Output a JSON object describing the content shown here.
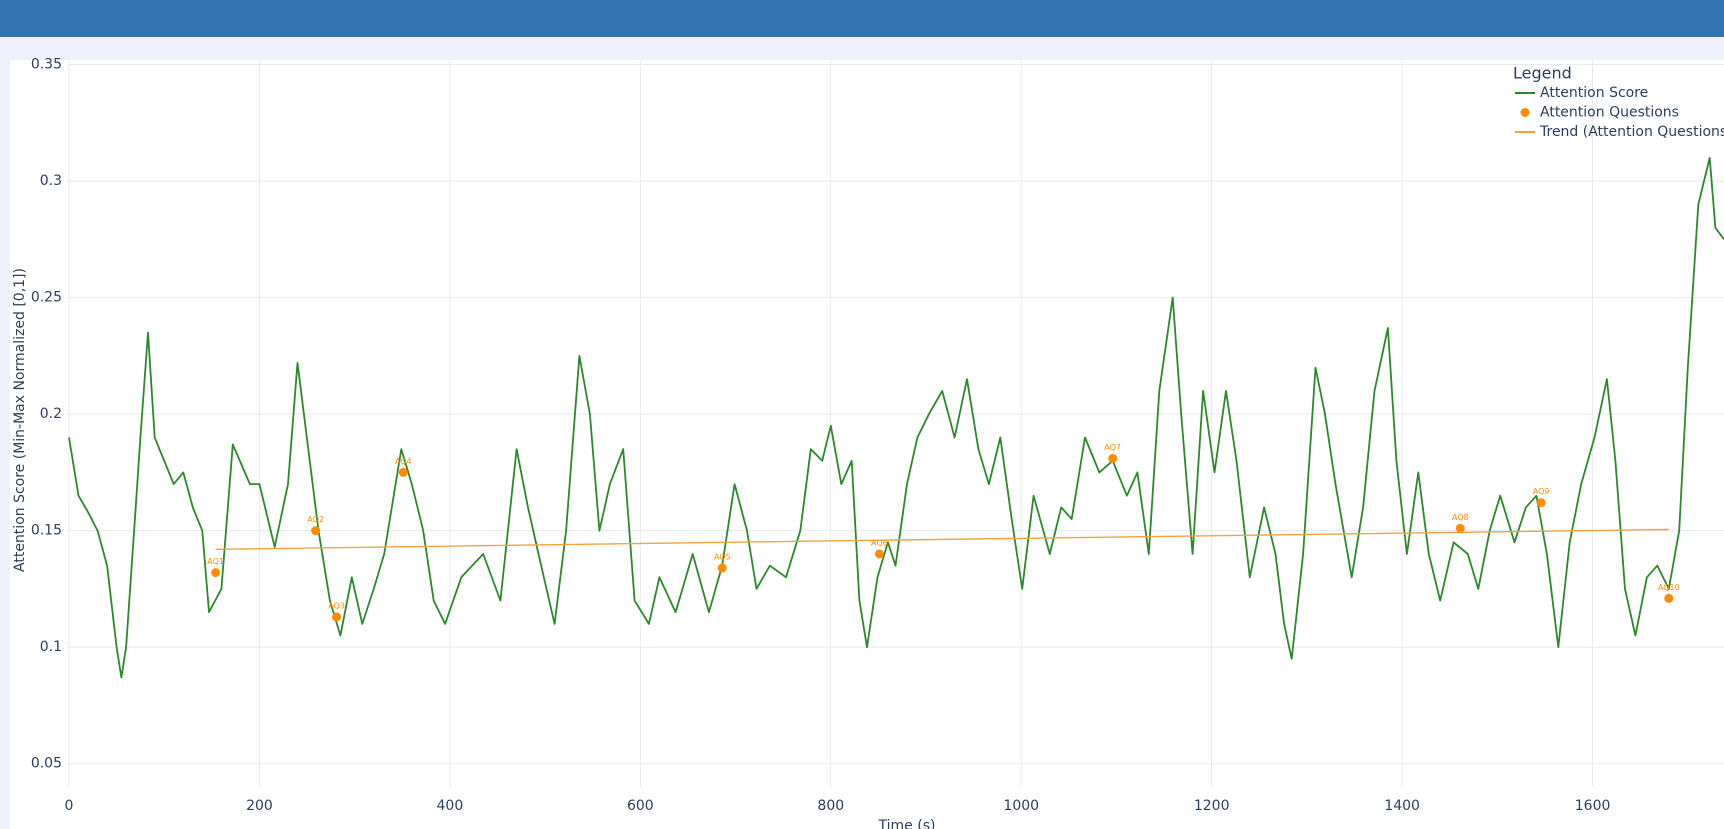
{
  "chart_data": {
    "type": "line",
    "xlabel": "Time (s)",
    "ylabel": "Attention Score (Min-Max Normalized [0,1])",
    "legend_title": "Legend",
    "legend": "top-right",
    "grid": true,
    "xlim": [
      0,
      1738
    ],
    "ylim": [
      0.04,
      0.352
    ],
    "xticks": [
      0,
      200,
      400,
      600,
      800,
      1000,
      1200,
      1400,
      1600
    ],
    "yticks": [
      0.05,
      0.1,
      0.15,
      0.2,
      0.25,
      0.3,
      0.35
    ],
    "series": [
      {
        "name": "Attention Score",
        "mode": "lines",
        "color": "#2a8a2a",
        "x": [
          0,
          10,
          20,
          30,
          40,
          50,
          55,
          60,
          70,
          75,
          83,
          90,
          100,
          110,
          120,
          130,
          140,
          147,
          160,
          172,
          190,
          200,
          216,
          230,
          240,
          262,
          274,
          285,
          297,
          308,
          320,
          331,
          349,
          360,
          372,
          383,
          395,
          412,
          435,
          453,
          470,
          482,
          493,
          510,
          522,
          536,
          547,
          557,
          568,
          582,
          594,
          609,
          620,
          637,
          655,
          672,
          686,
          699,
          712,
          722,
          736,
          753,
          768,
          779,
          791,
          800,
          811,
          822,
          830,
          838,
          849,
          860,
          868,
          880,
          891,
          903,
          917,
          930,
          943,
          955,
          966,
          978,
          990,
          1001,
          1013,
          1030,
          1042,
          1053,
          1067,
          1082,
          1096,
          1111,
          1122,
          1134,
          1145,
          1159,
          1168,
          1180,
          1191,
          1203,
          1215,
          1226,
          1240,
          1255,
          1267,
          1276,
          1284,
          1296,
          1309,
          1319,
          1330,
          1347,
          1359,
          1371,
          1385,
          1394,
          1405,
          1417,
          1428,
          1440,
          1454,
          1469,
          1480,
          1492,
          1503,
          1518,
          1530,
          1541,
          1552,
          1564,
          1576,
          1588,
          1602,
          1615,
          1624,
          1634,
          1645,
          1657,
          1668,
          1680,
          1691,
          1700,
          1711,
          1723,
          1729,
          1738
        ],
        "values": [
          0.19,
          0.165,
          0.158,
          0.15,
          0.135,
          0.1,
          0.087,
          0.1,
          0.16,
          0.19,
          0.235,
          0.19,
          0.18,
          0.17,
          0.175,
          0.16,
          0.15,
          0.115,
          0.125,
          0.187,
          0.17,
          0.17,
          0.143,
          0.17,
          0.222,
          0.15,
          0.12,
          0.105,
          0.13,
          0.11,
          0.125,
          0.14,
          0.185,
          0.17,
          0.15,
          0.12,
          0.11,
          0.13,
          0.14,
          0.12,
          0.185,
          0.16,
          0.14,
          0.11,
          0.15,
          0.225,
          0.2,
          0.15,
          0.17,
          0.185,
          0.12,
          0.11,
          0.13,
          0.115,
          0.14,
          0.115,
          0.135,
          0.17,
          0.15,
          0.125,
          0.135,
          0.13,
          0.15,
          0.185,
          0.18,
          0.195,
          0.17,
          0.18,
          0.12,
          0.1,
          0.13,
          0.145,
          0.135,
          0.17,
          0.19,
          0.2,
          0.21,
          0.19,
          0.215,
          0.185,
          0.17,
          0.19,
          0.155,
          0.125,
          0.165,
          0.14,
          0.16,
          0.155,
          0.19,
          0.175,
          0.18,
          0.165,
          0.175,
          0.14,
          0.21,
          0.25,
          0.2,
          0.14,
          0.21,
          0.175,
          0.21,
          0.18,
          0.13,
          0.16,
          0.14,
          0.11,
          0.095,
          0.14,
          0.22,
          0.2,
          0.17,
          0.13,
          0.16,
          0.21,
          0.237,
          0.18,
          0.14,
          0.175,
          0.14,
          0.12,
          0.145,
          0.14,
          0.125,
          0.15,
          0.165,
          0.145,
          0.16,
          0.165,
          0.14,
          0.1,
          0.145,
          0.17,
          0.19,
          0.215,
          0.18,
          0.125,
          0.105,
          0.13,
          0.135,
          0.125,
          0.15,
          0.22,
          0.29,
          0.31,
          0.28,
          0.275
        ]
      },
      {
        "name": "Attention Questions",
        "mode": "markers",
        "color": "#ff8c00",
        "x": [
          154,
          259,
          281,
          351,
          686,
          851,
          1096,
          1461,
          1546,
          1680
        ],
        "values": [
          0.132,
          0.15,
          0.113,
          0.175,
          0.134,
          0.14,
          0.181,
          0.151,
          0.162,
          0.121
        ],
        "labels": [
          "AQ1",
          "AQ2",
          "AQ3",
          "AQ4",
          "AQ5",
          "AQ6",
          "AQ7",
          "AQ8",
          "AQ9",
          "AQ10"
        ]
      },
      {
        "name": "Trend (Attention Questions)",
        "mode": "lines",
        "color": "#f5a340",
        "x": [
          154,
          1680
        ],
        "values": [
          0.142,
          0.1505
        ]
      }
    ]
  }
}
